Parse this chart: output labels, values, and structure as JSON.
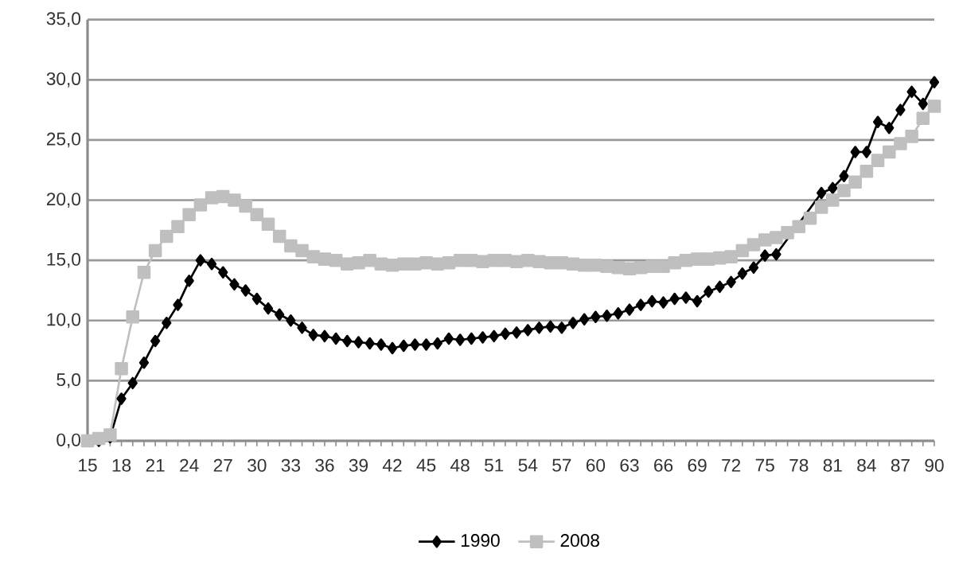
{
  "chart_data": {
    "type": "line",
    "categories": [
      "15",
      null,
      null,
      "18",
      null,
      null,
      "21",
      null,
      null,
      "24",
      null,
      null,
      "27",
      null,
      null,
      "30",
      null,
      null,
      "33",
      null,
      null,
      "36",
      null,
      null,
      "39",
      null,
      null,
      "42",
      null,
      null,
      "45",
      null,
      null,
      "48",
      null,
      null,
      "51",
      null,
      null,
      "54",
      null,
      null,
      "57",
      null,
      null,
      "60",
      null,
      null,
      "63",
      null,
      null,
      "66",
      null,
      null,
      "69",
      null,
      null,
      "72",
      null,
      null,
      "75",
      null,
      null,
      "78",
      null,
      null,
      "81",
      null,
      null,
      "84",
      null,
      null,
      "87",
      null,
      null,
      "90"
    ],
    "series": [
      {
        "name": "1990",
        "color": "#000000",
        "marker": "diamond",
        "values": [
          0,
          0,
          0.3,
          3.5,
          4.8,
          6.5,
          8.3,
          9.8,
          11.3,
          13.3,
          15.0,
          14.7,
          14.0,
          13.0,
          12.5,
          11.8,
          11.0,
          10.5,
          10.0,
          9.4,
          8.8,
          8.7,
          8.5,
          8.3,
          8.2,
          8.1,
          8.0,
          7.7,
          7.9,
          8.0,
          8.0,
          8.1,
          8.5,
          8.4,
          8.5,
          8.6,
          8.7,
          8.9,
          9.0,
          9.2,
          9.4,
          9.5,
          9.4,
          9.8,
          10.1,
          10.3,
          10.4,
          10.6,
          10.9,
          11.3,
          11.6,
          11.5,
          11.8,
          11.9,
          11.6,
          12.4,
          12.8,
          13.2,
          13.9,
          14.4,
          15.4,
          15.5,
          null,
          null,
          null,
          20.6,
          21.0,
          22.0,
          24.0,
          24.0,
          26.5,
          26.0,
          27.5,
          29.0,
          28.0,
          29.8
        ]
      },
      {
        "name": "2008",
        "color": "#bfbfbf",
        "marker": "square",
        "values": [
          0,
          0.2,
          0.5,
          6.0,
          10.3,
          14.0,
          15.8,
          17.0,
          17.8,
          18.8,
          19.6,
          20.2,
          20.3,
          20.0,
          19.5,
          18.8,
          18.0,
          17.0,
          16.2,
          15.8,
          15.3,
          15.1,
          15.0,
          14.7,
          14.8,
          15.0,
          14.7,
          14.6,
          14.7,
          14.7,
          14.8,
          14.7,
          14.8,
          15.0,
          15.0,
          14.9,
          15.0,
          15.0,
          14.9,
          15.0,
          14.9,
          14.8,
          14.8,
          14.7,
          14.6,
          14.6,
          14.5,
          14.4,
          14.3,
          14.4,
          14.5,
          14.5,
          14.8,
          15.0,
          15.1,
          15.1,
          15.2,
          15.3,
          15.8,
          16.3,
          16.7,
          16.9,
          17.3,
          17.8,
          18.5,
          19.4,
          20.0,
          20.8,
          21.5,
          22.4,
          23.3,
          24.0,
          24.7,
          25.3,
          26.8,
          27.8
        ]
      }
    ],
    "ylim": [
      0,
      35
    ],
    "yticks": [
      {
        "value": 0,
        "label": "0,0"
      },
      {
        "value": 5,
        "label": "5,0"
      },
      {
        "value": 10,
        "label": "10,0"
      },
      {
        "value": 15,
        "label": "15,0"
      },
      {
        "value": 20,
        "label": "20,0"
      },
      {
        "value": 25,
        "label": "25,0"
      },
      {
        "value": 30,
        "label": "30,0"
      },
      {
        "value": 35,
        "label": "35,0"
      }
    ],
    "grid": "y",
    "legend": "bottom"
  }
}
